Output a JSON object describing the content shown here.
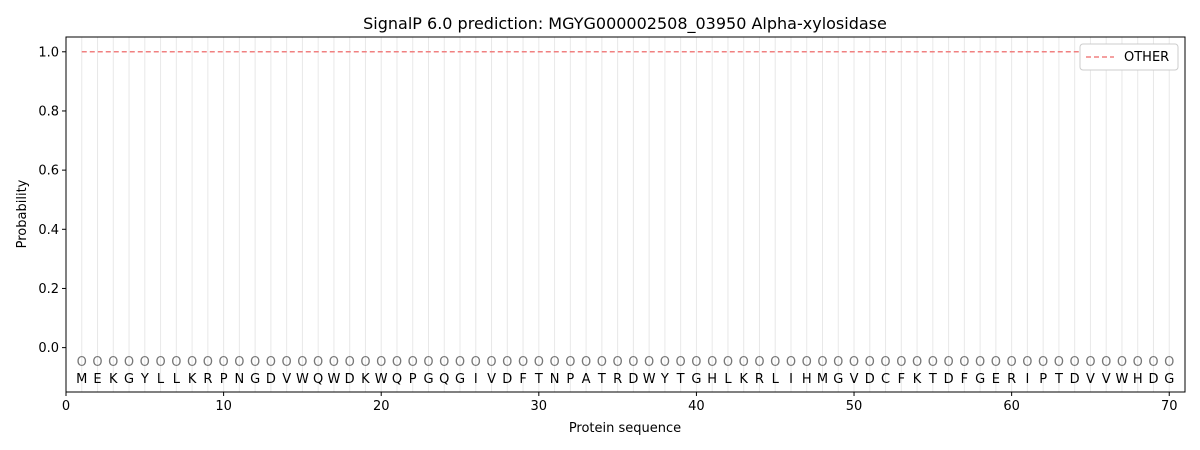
{
  "chart_data": {
    "type": "line",
    "title": "SignalP 6.0 prediction: MGYG000002508_03950 Alpha-xylosidase",
    "xlabel": "Protein sequence",
    "ylabel": "Probability",
    "xlim": [
      0,
      71
    ],
    "ylim": [
      -0.15,
      1.05
    ],
    "xticks": [
      0,
      10,
      20,
      30,
      40,
      50,
      60,
      70
    ],
    "yticks": [
      0.0,
      0.2,
      0.4,
      0.6,
      0.8,
      1.0
    ],
    "ytick_labels": [
      "0.0",
      "0.2",
      "0.4",
      "0.6",
      "0.8",
      "1.0"
    ],
    "sequence": "MEKGYLLKRPNGDVWQWDKWQPGQGIVDFTNPATRDWYTGHLKRLIHMGVDCFKTDFGERIPTDVVWHDG",
    "region_label": "O",
    "series": [
      {
        "name": "OTHER",
        "color": "#f08080",
        "style": "dashed",
        "x_start": 1,
        "x_end": 70,
        "value": 1.0
      }
    ],
    "legend_placement": "top-right",
    "grid": "vertical lines at each residue"
  }
}
